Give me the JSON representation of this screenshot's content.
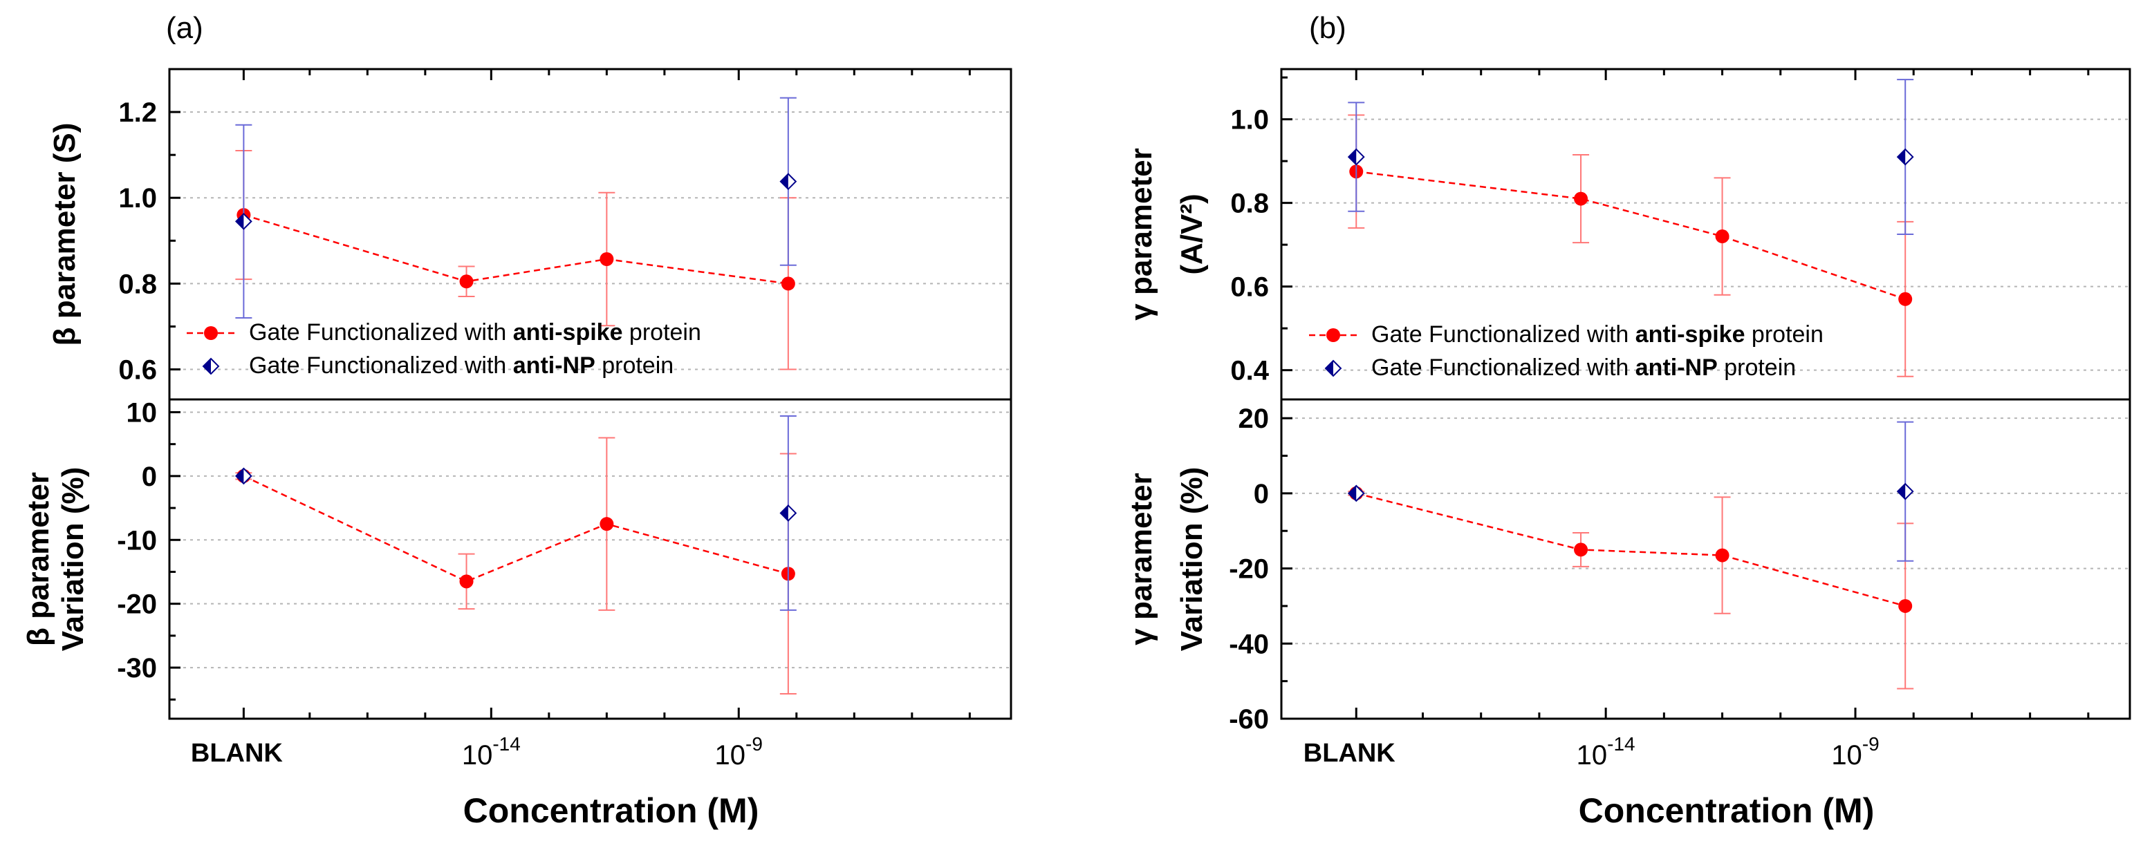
{
  "chart_data": [
    {
      "panel": "(a)",
      "type": "scatter",
      "x_scale": "log",
      "x_categories": [
        "BLANK",
        "10^-14",
        "10^-9"
      ],
      "xlabel": "Concentration (M)",
      "legend": {
        "spike": {
          "prefix": "Gate Functionalized with ",
          "bold": "anti-spike",
          "suffix": " protein",
          "color": "#ff0000"
        },
        "np": {
          "prefix": "Gate Functionalized with ",
          "bold": "anti-NP",
          "suffix": " protein",
          "color": "#00008b"
        }
      },
      "subplots": [
        {
          "name": "top",
          "ylabel": "β parameter (S)",
          "ylabel_lines": [
            "β parameter (S)"
          ],
          "ylim": [
            0.53,
            1.3
          ],
          "yticks": [
            0.6,
            0.8,
            1.0,
            1.2
          ],
          "ytick_labels": [
            "0.6",
            "0.8",
            "1.0",
            "1.2"
          ],
          "series": [
            {
              "name": "anti-spike",
              "color": "#ff0000",
              "line": "dashed",
              "marker": "circle",
              "x": [
                0,
                1.35,
                2.2,
                3.3
              ],
              "y": [
                0.96,
                0.805,
                0.857,
                0.8
              ],
              "err": [
                0.15,
                0.035,
                0.155,
                0.2
              ]
            },
            {
              "name": "anti-NP",
              "color": "#00008b",
              "line": "none",
              "marker": "half-diamond",
              "x": [
                0,
                3.3
              ],
              "y": [
                0.945,
                1.038
              ],
              "err": [
                0.225,
                0.195
              ]
            }
          ]
        },
        {
          "name": "bottom",
          "ylabel": "β parameter Variation (%)",
          "ylabel_lines": [
            "β parameter",
            "Variation (%)"
          ],
          "ylim": [
            -38,
            12
          ],
          "yticks": [
            10,
            0,
            -10,
            -20,
            -30
          ],
          "ytick_labels": [
            "10",
            "0",
            "-10",
            "-20",
            "-30"
          ],
          "series": [
            {
              "name": "anti-spike",
              "color": "#ff0000",
              "line": "dashed",
              "marker": "circle",
              "x": [
                0,
                1.35,
                2.2,
                3.3
              ],
              "y": [
                0,
                -16.5,
                -7.5,
                -15.3
              ],
              "err": [
                0.5,
                4.3,
                13.5,
                18.8
              ]
            },
            {
              "name": "anti-NP",
              "color": "#00008b",
              "line": "none",
              "marker": "half-diamond",
              "x": [
                0,
                3.3
              ],
              "y": [
                0,
                -5.8
              ],
              "err": [
                0,
                15.2
              ]
            }
          ]
        }
      ]
    },
    {
      "panel": "(b)",
      "type": "scatter",
      "x_scale": "log",
      "x_categories": [
        "BLANK",
        "10^-14",
        "10^-9"
      ],
      "xlabel": "Concentration (M)",
      "legend": {
        "spike": {
          "prefix": "Gate Functionalized with ",
          "bold": "anti-spike",
          "suffix": " protein",
          "color": "#ff0000"
        },
        "np": {
          "prefix": "Gate Functionalized with ",
          "bold": "anti-NP",
          "suffix": " protein",
          "color": "#00008b"
        }
      },
      "subplots": [
        {
          "name": "top",
          "ylabel": "γ parameter (A/V²)",
          "ylabel_lines": [
            "γ parameter",
            "(A/V²)"
          ],
          "ylim": [
            0.33,
            1.12
          ],
          "yticks": [
            0.4,
            0.6,
            0.8,
            1.0
          ],
          "ytick_labels": [
            "0.4",
            "0.6",
            "0.8",
            "1.0"
          ],
          "series": [
            {
              "name": "anti-spike",
              "color": "#ff0000",
              "line": "dashed",
              "marker": "circle",
              "x": [
                0,
                1.35,
                2.2,
                3.3
              ],
              "y": [
                0.875,
                0.81,
                0.72,
                0.57
              ],
              "err": [
                0.135,
                0.105,
                0.14,
                0.185
              ]
            },
            {
              "name": "anti-NP",
              "color": "#00008b",
              "line": "none",
              "marker": "half-diamond",
              "x": [
                0,
                3.3
              ],
              "y": [
                0.91,
                0.91
              ],
              "err": [
                0.13,
                0.185
              ]
            }
          ]
        },
        {
          "name": "bottom",
          "ylabel": "γ parameter Variation (%)",
          "ylabel_lines": [
            "γ parameter",
            "Variation (%)"
          ],
          "ylim": [
            -60,
            25
          ],
          "yticks": [
            20,
            0,
            -20,
            -40,
            -60
          ],
          "ytick_labels": [
            "20",
            "0",
            "-20",
            "-40",
            "-60"
          ],
          "series": [
            {
              "name": "anti-spike",
              "color": "#ff0000",
              "line": "dashed",
              "marker": "circle",
              "x": [
                0,
                1.35,
                2.2,
                3.3
              ],
              "y": [
                0,
                -15,
                -16.5,
                -30
              ],
              "err": [
                0.5,
                4.5,
                15.5,
                22
              ]
            },
            {
              "name": "anti-NP",
              "color": "#00008b",
              "line": "none",
              "marker": "half-diamond",
              "x": [
                0,
                3.3
              ],
              "y": [
                0,
                0.5
              ],
              "err": [
                0,
                18.5
              ]
            }
          ]
        }
      ]
    }
  ]
}
